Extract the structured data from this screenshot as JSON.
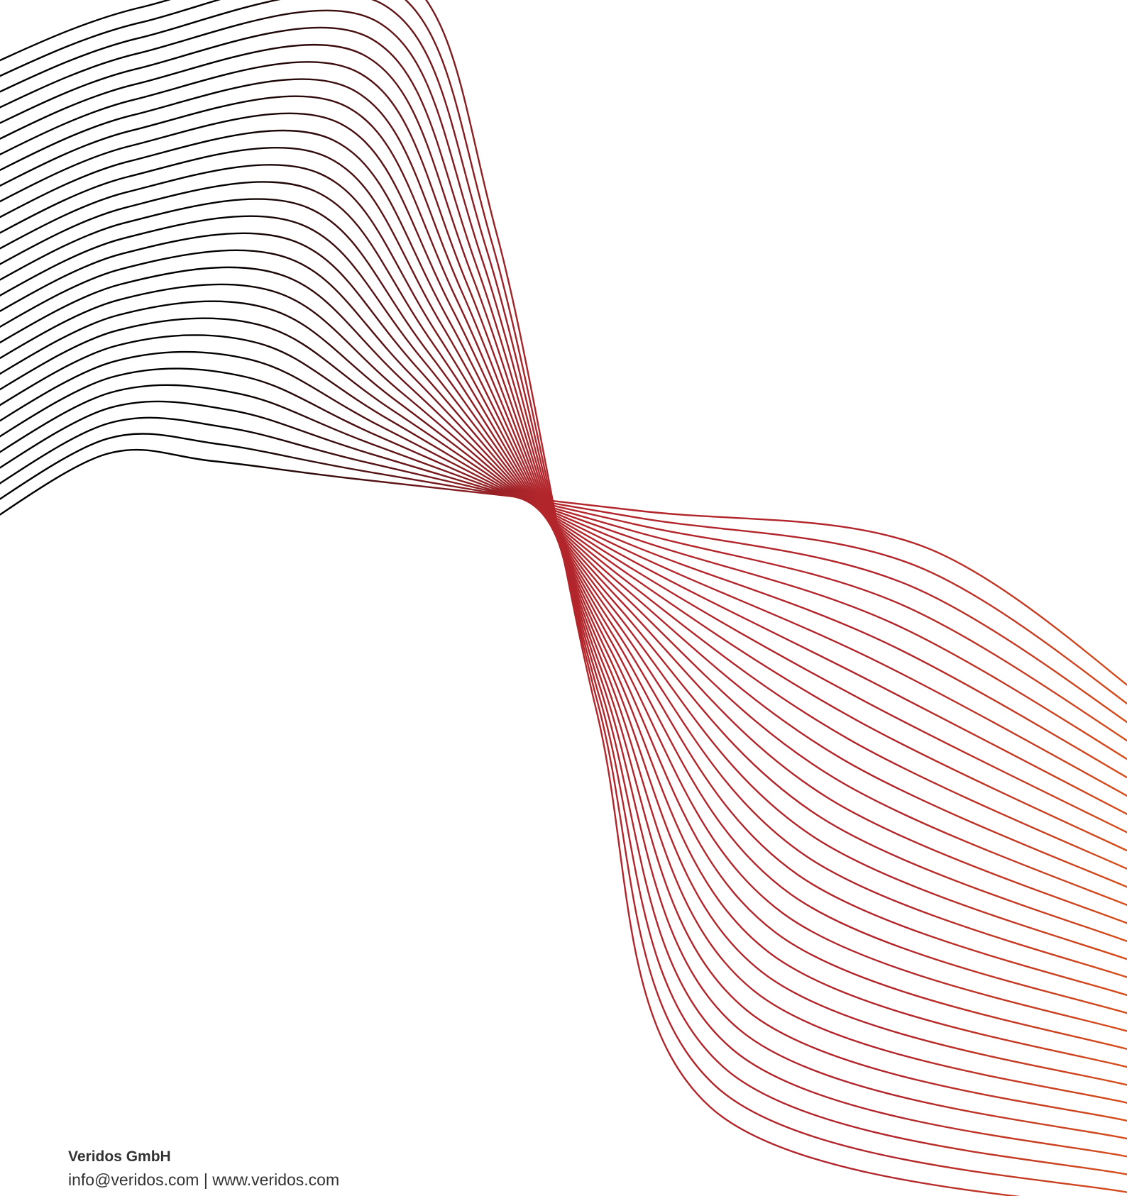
{
  "footer": {
    "company": "Veridos GmbH",
    "email": "info@veridos.com",
    "separator": "|",
    "website": "www.veridos.com"
  },
  "art": {
    "name": "decorative-wave-lines",
    "colors": {
      "start": "#000000",
      "mid": "#b2262b",
      "end": "#d64e1c"
    }
  }
}
